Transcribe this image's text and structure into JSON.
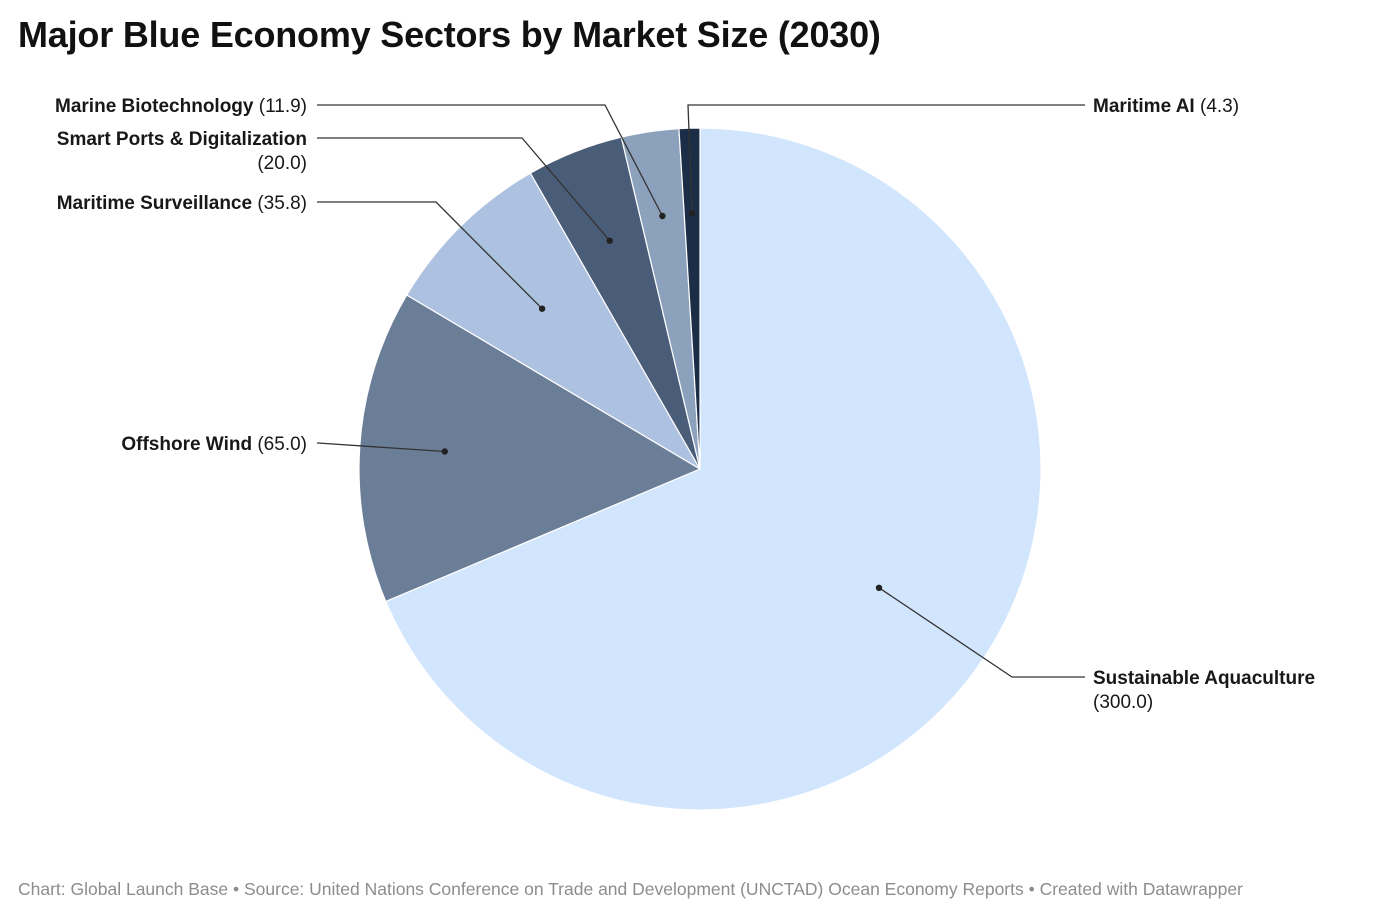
{
  "chart_data": {
    "type": "pie",
    "title": "Major Blue Economy Sectors by Market Size (2030)",
    "start_angle_deg": 0,
    "direction": "clockwise",
    "slices": [
      {
        "label": "Sustainable Aquaculture",
        "value": 300.0,
        "value_text": "(300.0)",
        "color": "#d1e5fd"
      },
      {
        "label": "Offshore Wind",
        "value": 65.0,
        "value_text": "(65.0)",
        "color": "#6b7e98"
      },
      {
        "label": "Maritime Surveillance",
        "value": 35.8,
        "value_text": "(35.8)",
        "color": "#adc2e0"
      },
      {
        "label": "Smart Ports & Digitalization",
        "value": 20.0,
        "value_text": "(20.0)",
        "color": "#4a5d78"
      },
      {
        "label": "Marine Biotechnology",
        "value": 11.9,
        "value_text": "(11.9)",
        "color": "#8ca1bc"
      },
      {
        "label": "Maritime AI",
        "value": 4.3,
        "value_text": "(4.3)",
        "color": "#1b2d47"
      }
    ]
  },
  "footer": {
    "text": "Chart: Global Launch Base • Source: United Nations Conference on Trade and Development (UNCTAD) Ocean Economy Reports • Created with Datawrapper"
  }
}
